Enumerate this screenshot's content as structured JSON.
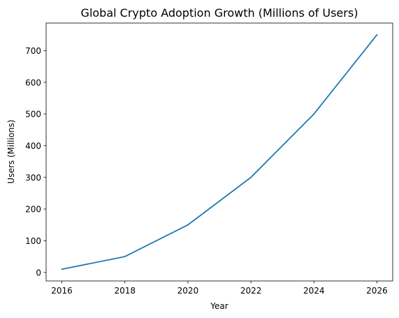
{
  "chart_data": {
    "type": "line",
    "title": "Global Crypto Adoption Growth (Millions of Users)",
    "xlabel": "Year",
    "ylabel": "Users (Millions)",
    "x": [
      2016,
      2018,
      2020,
      2022,
      2024,
      2026
    ],
    "series": [
      {
        "values": [
          10,
          50,
          150,
          300,
          500,
          750
        ],
        "color": "#1f77b4"
      }
    ],
    "xticks": [
      "2016",
      "2018",
      "2020",
      "2022",
      "2024",
      "2026"
    ],
    "yticks": [
      "0",
      "100",
      "200",
      "300",
      "400",
      "500",
      "600",
      "700"
    ],
    "xlim": [
      2015.5,
      2026.5
    ],
    "ylim": [
      -27,
      787
    ],
    "grid": false,
    "legend": "none"
  }
}
